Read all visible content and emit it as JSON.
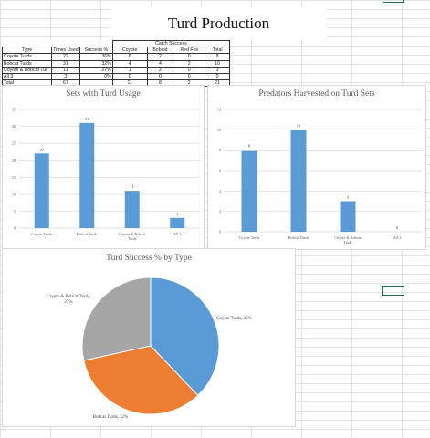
{
  "sheet": {
    "title": "Turd Production"
  },
  "table": {
    "group_header": "Catch Success",
    "headers": [
      "Type",
      "Times Used",
      "Success %",
      "Coyote",
      "Bobcat",
      "Red Fox",
      "Total"
    ],
    "rows": [
      [
        "Coyote Turds",
        "22",
        "36%",
        "6",
        "2",
        "0",
        "8"
      ],
      [
        "Bobcat Turds",
        "31",
        "32%",
        "4",
        "4",
        "2",
        "10"
      ],
      [
        "Coyote & Bobcat Tur",
        "11",
        "27%",
        "1",
        "2",
        "0",
        "3"
      ],
      [
        "All 3",
        "3",
        "0%",
        "0",
        "0",
        "0",
        "0"
      ],
      [
        "Total",
        "67",
        "",
        "11",
        "8",
        "2",
        "21"
      ]
    ]
  },
  "chart_data": [
    {
      "type": "bar",
      "title": "Sets with Turd Usage",
      "categories": [
        "Coyote Turds",
        "Bobcat Turds",
        "Coyote & Bobcat Turds",
        "All 3"
      ],
      "values": [
        22,
        31,
        11,
        3
      ],
      "ylim": [
        0,
        35
      ],
      "yticks": [
        "0",
        "5",
        "10",
        "15",
        "20",
        "25",
        "30",
        "35"
      ],
      "data_labels": [
        "22",
        "31",
        "11",
        "3"
      ],
      "grid": true,
      "color": "#5b9bd5"
    },
    {
      "type": "bar",
      "title": "Predators Harvested on Turd Sets",
      "categories": [
        "Coyote Turds",
        "Bobcat Turds",
        "Coyote & Bobcat Turds",
        "All 3"
      ],
      "values": [
        8,
        10,
        3,
        0
      ],
      "ylim": [
        0,
        12
      ],
      "yticks": [
        "0",
        "2",
        "4",
        "6",
        "8",
        "10",
        "12"
      ],
      "data_labels": [
        "8",
        "10",
        "3",
        "0"
      ],
      "grid": true,
      "color": "#5b9bd5"
    },
    {
      "type": "pie",
      "title": "Turd Success % by Type",
      "slices": [
        {
          "label": "Coyote Turds, 36%",
          "value": 36,
          "color": "#5b9bd5"
        },
        {
          "label": "Bobcat Turds, 32%",
          "value": 32,
          "color": "#ed7d31"
        },
        {
          "label": "Coyote & Bobcat Turds, 27%",
          "value": 27,
          "color": "#a5a5a5"
        }
      ]
    }
  ]
}
